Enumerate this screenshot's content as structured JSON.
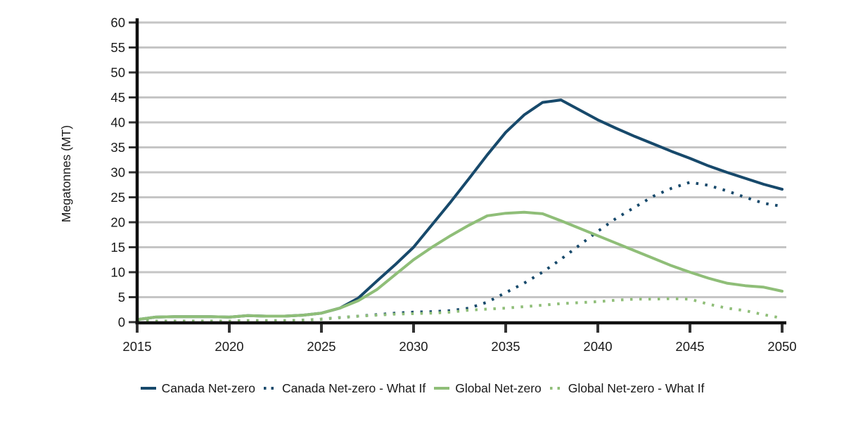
{
  "chart_data": {
    "type": "line",
    "title": "",
    "xlabel": "",
    "ylabel": "Megatonnes (MT)",
    "x": [
      2015,
      2016,
      2017,
      2018,
      2019,
      2020,
      2021,
      2022,
      2023,
      2024,
      2025,
      2026,
      2027,
      2028,
      2029,
      2030,
      2031,
      2032,
      2033,
      2034,
      2035,
      2036,
      2037,
      2038,
      2039,
      2040,
      2041,
      2042,
      2043,
      2044,
      2045,
      2046,
      2047,
      2048,
      2049,
      2050
    ],
    "xticks": [
      2015,
      2020,
      2025,
      2030,
      2035,
      2040,
      2045,
      2050
    ],
    "yticks": [
      0,
      5,
      10,
      15,
      20,
      25,
      30,
      35,
      40,
      45,
      50,
      55,
      60
    ],
    "xlim": [
      2015,
      2050
    ],
    "ylim": [
      0,
      60
    ],
    "grid": true,
    "legend_position": "bottom",
    "series": [
      {
        "name": "Canada Net-zero",
        "style": "solid",
        "color": "#17496b",
        "values": [
          0.5,
          1.0,
          1.1,
          1.1,
          1.1,
          1.0,
          1.3,
          1.2,
          1.2,
          1.4,
          1.8,
          2.8,
          4.8,
          8.2,
          11.5,
          15.0,
          19.5,
          24.0,
          28.7,
          33.5,
          38.0,
          41.5,
          44.0,
          44.5,
          42.5,
          40.5,
          38.8,
          37.2,
          35.7,
          34.2,
          32.8,
          31.3,
          30.0,
          28.8,
          27.6,
          26.6
        ]
      },
      {
        "name": "Canada Net-zero - What If",
        "style": "dotted",
        "color": "#17496b",
        "values": [
          0.2,
          0.2,
          0.2,
          0.2,
          0.2,
          0.2,
          0.3,
          0.3,
          0.3,
          0.4,
          0.6,
          0.9,
          1.2,
          1.5,
          1.8,
          2.0,
          2.1,
          2.3,
          2.8,
          4.0,
          5.9,
          7.8,
          10.0,
          12.6,
          15.4,
          18.2,
          20.8,
          23.0,
          25.2,
          26.8,
          28.0,
          27.4,
          26.3,
          25.0,
          23.8,
          23.2
        ]
      },
      {
        "name": "Global Net-zero",
        "style": "solid",
        "color": "#8fbe78",
        "values": [
          0.5,
          1.0,
          1.1,
          1.1,
          1.1,
          1.0,
          1.3,
          1.2,
          1.2,
          1.4,
          1.8,
          2.8,
          4.3,
          6.5,
          9.5,
          12.5,
          15.0,
          17.3,
          19.4,
          21.3,
          21.8,
          22.0,
          21.7,
          20.3,
          18.8,
          17.3,
          15.8,
          14.3,
          12.8,
          11.3,
          10.0,
          8.8,
          7.8,
          7.3,
          7.0,
          6.2
        ]
      },
      {
        "name": "Global Net-zero - What If",
        "style": "dotted",
        "color": "#8fbe78",
        "values": [
          0.2,
          0.2,
          0.2,
          0.2,
          0.2,
          0.2,
          0.3,
          0.3,
          0.3,
          0.4,
          0.6,
          0.9,
          1.2,
          1.4,
          1.6,
          1.7,
          1.8,
          2.0,
          2.4,
          2.6,
          2.8,
          3.1,
          3.4,
          3.7,
          3.9,
          4.1,
          4.4,
          4.6,
          4.6,
          4.7,
          4.6,
          3.6,
          2.8,
          2.3,
          1.5,
          0.8
        ]
      }
    ],
    "colors": {
      "grid": "#c5c5c5",
      "axis": "#111111",
      "tick": "#333333",
      "text": "#1a1a1a",
      "background": "#ffffff"
    }
  }
}
